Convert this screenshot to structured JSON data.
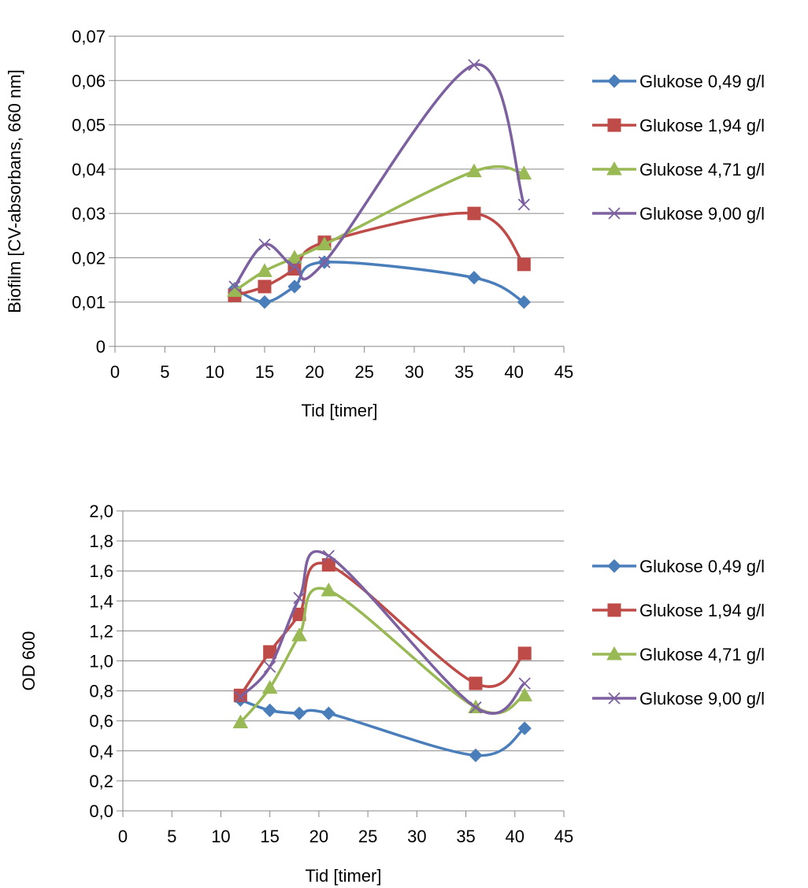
{
  "chart_data": [
    {
      "type": "line",
      "xlabel": "Tid [timer]",
      "ylabel": "Biofilm [CV-absorbans, 660 nm]",
      "xlim": [
        0,
        45
      ],
      "ylim": [
        0,
        0.07
      ],
      "x_ticks": [
        "0",
        "5",
        "10",
        "15",
        "20",
        "25",
        "30",
        "35",
        "40",
        "45"
      ],
      "y_ticks": [
        "0",
        "0,01",
        "0,02",
        "0,03",
        "0,04",
        "0,05",
        "0,06",
        "0,07"
      ],
      "grid": "horizontal",
      "legend": "right",
      "smoothed": true,
      "x": [
        12,
        15,
        18,
        21,
        36,
        41
      ],
      "series": [
        {
          "name": "Glukose 0,49 g/l",
          "color": "#4a7ebb",
          "marker": "diamond",
          "values": [
            0.013,
            0.01,
            0.0135,
            0.019,
            0.0155,
            0.01
          ]
        },
        {
          "name": "Glukose 1,94 g/l",
          "color": "#be4b48",
          "marker": "square",
          "values": [
            0.0115,
            0.0135,
            0.0175,
            0.0235,
            0.03,
            0.0185
          ]
        },
        {
          "name": "Glukose 4,71 g/l",
          "color": "#98b954",
          "marker": "triangle",
          "values": [
            0.0125,
            0.017,
            0.02,
            0.023,
            0.0395,
            0.039
          ]
        },
        {
          "name": "Glukose 9,00 g/l",
          "color": "#7d60a0",
          "marker": "x",
          "values": [
            0.0135,
            0.023,
            0.018,
            0.019,
            0.0635,
            0.032
          ]
        }
      ]
    },
    {
      "type": "line",
      "xlabel": "Tid [timer]",
      "ylabel": "OD 600",
      "xlim": [
        0,
        45
      ],
      "ylim": [
        0,
        2.0
      ],
      "x_ticks": [
        "0",
        "5",
        "10",
        "15",
        "20",
        "25",
        "30",
        "35",
        "40",
        "45"
      ],
      "y_ticks": [
        "0,0",
        "0,2",
        "0,4",
        "0,6",
        "0,8",
        "1,0",
        "1,2",
        "1,4",
        "1,6",
        "1,8",
        "2,0"
      ],
      "grid": "horizontal",
      "legend": "right",
      "smoothed": true,
      "x": [
        12,
        15,
        18,
        21,
        36,
        41
      ],
      "series": [
        {
          "name": "Glukose 0,49 g/l",
          "color": "#4a7ebb",
          "marker": "diamond",
          "values": [
            0.74,
            0.67,
            0.65,
            0.65,
            0.37,
            0.55
          ]
        },
        {
          "name": "Glukose 1,94 g/l",
          "color": "#be4b48",
          "marker": "square",
          "values": [
            0.77,
            1.06,
            1.31,
            1.64,
            0.85,
            1.05
          ]
        },
        {
          "name": "Glukose 4,71 g/l",
          "color": "#98b954",
          "marker": "triangle",
          "values": [
            0.59,
            0.82,
            1.17,
            1.47,
            0.69,
            0.77
          ]
        },
        {
          "name": "Glukose 9,00 g/l",
          "color": "#7d60a0",
          "marker": "x",
          "values": [
            0.76,
            0.96,
            1.42,
            1.7,
            0.69,
            0.85
          ]
        }
      ]
    }
  ]
}
